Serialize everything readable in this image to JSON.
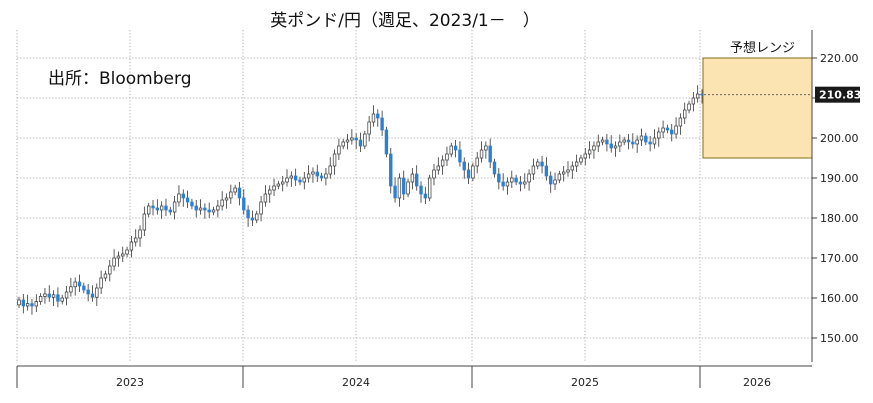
{
  "chart_data": {
    "type": "candlestick",
    "title": "英ポンド/円（週足、2023/1－　）",
    "source_label": "出所：Bloomberg",
    "range_label": "予想レンジ",
    "last_value_label": "210.83",
    "forecast_range": [
      195,
      220
    ],
    "ylim": [
      144,
      225
    ],
    "yticks": [
      "150.00",
      "160.00",
      "170.00",
      "180.00",
      "190.00",
      "200.00",
      "210.00",
      "220.00"
    ],
    "xticks": [
      "2023",
      "2024",
      "2025",
      "2026"
    ],
    "grid": true,
    "colors": {
      "up": "#ffffff",
      "down": "#2f7fd1",
      "forecast_fill": "#fbe4b1",
      "forecast_border": "#8a6d1a",
      "last_badge": "#1a1a1a"
    },
    "weekly_close": [
      159.5,
      158.0,
      158.6,
      158.0,
      159.1,
      160.4,
      161.0,
      160.2,
      160.8,
      159.2,
      160.0,
      161.5,
      162.8,
      164.0,
      163.0,
      162.0,
      161.0,
      160.2,
      162.5,
      165.0,
      166.0,
      168.0,
      170.0,
      170.5,
      171.0,
      172.0,
      174.0,
      175.0,
      177.0,
      181.0,
      183.0,
      182.5,
      182.0,
      183.0,
      182.0,
      181.5,
      184.0,
      186.0,
      185.0,
      184.0,
      183.0,
      182.0,
      182.5,
      182.0,
      181.5,
      182.0,
      183.0,
      184.5,
      185.0,
      186.5,
      187.5,
      185.0,
      182.0,
      180.0,
      179.5,
      181.0,
      184.0,
      186.0,
      187.0,
      188.0,
      188.5,
      189.0,
      190.0,
      190.5,
      189.5,
      189.0,
      190.0,
      191.0,
      191.5,
      190.5,
      190.0,
      191.0,
      193.0,
      196.0,
      198.0,
      199.0,
      199.5,
      200.0,
      199.5,
      198.0,
      201.0,
      204.0,
      206.0,
      205.0,
      202.0,
      196.0,
      188.0,
      185.0,
      190.0,
      186.0,
      189.0,
      191.0,
      188.0,
      186.0,
      185.0,
      190.0,
      192.0,
      193.0,
      194.5,
      196.0,
      198.0,
      197.0,
      194.0,
      192.0,
      190.0,
      193.0,
      195.0,
      197.0,
      198.0,
      194.0,
      191.0,
      189.0,
      188.0,
      189.0,
      190.0,
      189.0,
      188.5,
      189.0,
      191.0,
      193.0,
      194.0,
      193.0,
      190.5,
      188.5,
      189.5,
      191.0,
      191.5,
      192.0,
      193.0,
      194.0,
      195.0,
      196.0,
      197.0,
      198.0,
      199.0,
      199.5,
      198.5,
      197.5,
      198.0,
      199.0,
      199.5,
      199.0,
      198.5,
      199.5,
      200.5,
      199.0,
      198.5,
      200.0,
      201.5,
      202.5,
      202.0,
      201.0,
      203.0,
      205.0,
      207.0,
      208.5,
      210.0,
      211.0,
      210.83
    ]
  }
}
